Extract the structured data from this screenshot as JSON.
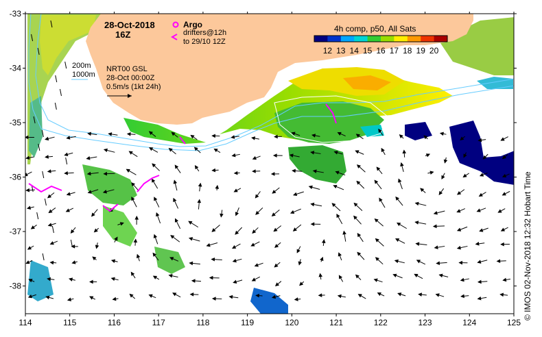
{
  "header": {
    "date": "28-Oct-2018",
    "hour": "16Z"
  },
  "legend": {
    "argo_label": "Argo",
    "drifters_line1": "drifters@12h",
    "drifters_line2": "to 29/10 12Z",
    "argo_color": "#ff00ff",
    "drifter_color": "#ff00ff"
  },
  "colorbar": {
    "title": "4h comp, p50, All Sats",
    "tick_labels": [
      "12",
      "13",
      "14",
      "15",
      "16",
      "17",
      "18",
      "19",
      "20"
    ],
    "colors": [
      "#000080",
      "#0033cc",
      "#00a6ff",
      "#00d4d4",
      "#33cc33",
      "#99dd00",
      "#ffee00",
      "#ff9900",
      "#ee3300",
      "#aa0000"
    ]
  },
  "contours": {
    "line1": "200m",
    "line2": "1000m",
    "color": "#66ccff"
  },
  "currents": {
    "source": "NRT00 GSL",
    "valid": "28-Oct 00:00Z",
    "scale": "0.5m/s (1kt 24h)"
  },
  "axes": {
    "x_labels": [
      "114",
      "115",
      "116",
      "117",
      "118",
      "119",
      "120",
      "121",
      "122",
      "123",
      "124",
      "125"
    ],
    "y_labels": [
      "-33",
      "-34",
      "-35",
      "-36",
      "-37",
      "-38"
    ]
  },
  "colors": {
    "land": "#fcc89b",
    "background": "#ffffff"
  },
  "credit": "© IMOS 02-Nov-2018 12:32 Hobart Time"
}
